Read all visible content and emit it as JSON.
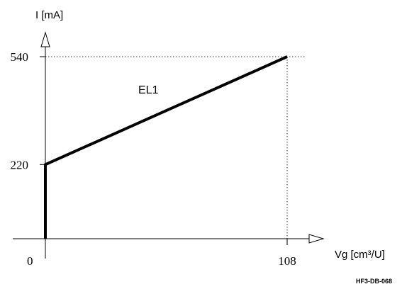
{
  "chart_data": {
    "type": "line",
    "xlabel": "Vg [cm³/U]",
    "ylabel": "I [mA]",
    "x_ticks": [
      {
        "value": 108,
        "label": "108"
      }
    ],
    "y_ticks": [
      {
        "value": 220,
        "label": "220"
      },
      {
        "value": 540,
        "label": "540"
      }
    ],
    "origin_label": "0",
    "xlim": [
      0,
      108
    ],
    "ylim": [
      0,
      540
    ],
    "series": [
      {
        "name": "EL1",
        "x": [
          0,
          0,
          108
        ],
        "y": [
          0,
          220,
          540
        ]
      }
    ],
    "reference_lines": "dotted",
    "grid": false,
    "legend": "none"
  },
  "figure_code": "HF3-DB-068"
}
